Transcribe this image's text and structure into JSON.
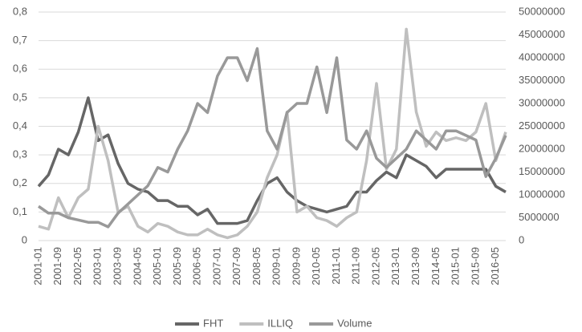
{
  "chart_data": {
    "type": "line",
    "categories": [
      "2001-01",
      null,
      "2001-09",
      null,
      "2002-05",
      null,
      "2003-01",
      null,
      "2003-09",
      null,
      "2004-05",
      null,
      "2005-01",
      null,
      "2005-09",
      null,
      "2006-05",
      null,
      "2007-01",
      null,
      "2007-09",
      null,
      "2008-05",
      null,
      "2009-01",
      null,
      "2009-09",
      null,
      "2010-05",
      null,
      "2011-01",
      null,
      "2011-09",
      null,
      "2012-05",
      null,
      "2013-01",
      null,
      "2013-09",
      null,
      "2014-05",
      null,
      "2015-01",
      null,
      "2015-09",
      null,
      "2016-05",
      null
    ],
    "series": [
      {
        "name": "FHT",
        "color": "#666666",
        "axis": "y",
        "values": [
          0.19,
          0.23,
          0.32,
          0.3,
          0.38,
          0.5,
          0.35,
          0.37,
          0.27,
          0.2,
          0.18,
          0.17,
          0.14,
          0.14,
          0.12,
          0.12,
          0.09,
          0.11,
          0.06,
          0.06,
          0.06,
          0.07,
          0.14,
          0.2,
          0.22,
          0.17,
          0.14,
          0.12,
          0.11,
          0.1,
          0.11,
          0.12,
          0.17,
          0.17,
          0.21,
          0.24,
          0.22,
          0.3,
          0.28,
          0.26,
          0.22,
          0.25,
          0.25,
          0.25,
          0.25,
          0.25,
          0.19,
          0.17
        ]
      },
      {
        "name": "ILLIQ",
        "color": "#bfbfbf",
        "axis": "y",
        "values": [
          0.05,
          0.04,
          0.15,
          0.08,
          0.15,
          0.18,
          0.4,
          0.28,
          0.1,
          0.12,
          0.05,
          0.03,
          0.06,
          0.05,
          0.03,
          0.02,
          0.02,
          0.04,
          0.02,
          0.01,
          0.02,
          0.05,
          0.1,
          0.22,
          0.3,
          0.45,
          0.1,
          0.12,
          0.08,
          0.07,
          0.05,
          0.08,
          0.1,
          0.28,
          0.55,
          0.25,
          0.32,
          0.74,
          0.45,
          0.33,
          0.38,
          0.35,
          0.36,
          0.35,
          0.38,
          0.48,
          0.28,
          0.38
        ]
      },
      {
        "name": "Volume",
        "color": "#999999",
        "axis": "y2",
        "values": [
          7500000,
          6000000,
          6000000,
          5000000,
          4500000,
          4000000,
          4000000,
          3000000,
          6000000,
          8000000,
          10000000,
          12000000,
          16000000,
          15000000,
          20000000,
          24000000,
          30000000,
          28000000,
          36000000,
          40000000,
          40000000,
          35000000,
          42000000,
          24000000,
          20000000,
          28000000,
          30000000,
          30000000,
          38000000,
          28000000,
          40000000,
          22000000,
          20000000,
          24000000,
          18000000,
          16000000,
          18000000,
          20000000,
          24000000,
          22000000,
          20000000,
          24000000,
          24000000,
          23000000,
          22000000,
          14000000,
          18000000,
          23000000
        ]
      }
    ],
    "ylim": [
      0,
      0.8
    ],
    "yticks": [
      0,
      {
        "value": 0.1,
        "label": "0,1"
      },
      {
        "value": 0.2,
        "label": "0,2"
      },
      {
        "value": 0.3,
        "label": "0,3"
      },
      {
        "value": 0.4,
        "label": "0,4"
      },
      {
        "value": 0.5,
        "label": "0,5"
      },
      {
        "value": 0.6,
        "label": "0,6"
      },
      {
        "value": 0.7,
        "label": "0,7"
      },
      {
        "value": 0.8,
        "label": "0,8"
      }
    ],
    "y2lim": [
      0,
      50000000
    ],
    "y2ticks": [
      0,
      5000000,
      10000000,
      15000000,
      20000000,
      25000000,
      30000000,
      35000000,
      40000000,
      45000000,
      50000000
    ],
    "legend": "bottom"
  }
}
